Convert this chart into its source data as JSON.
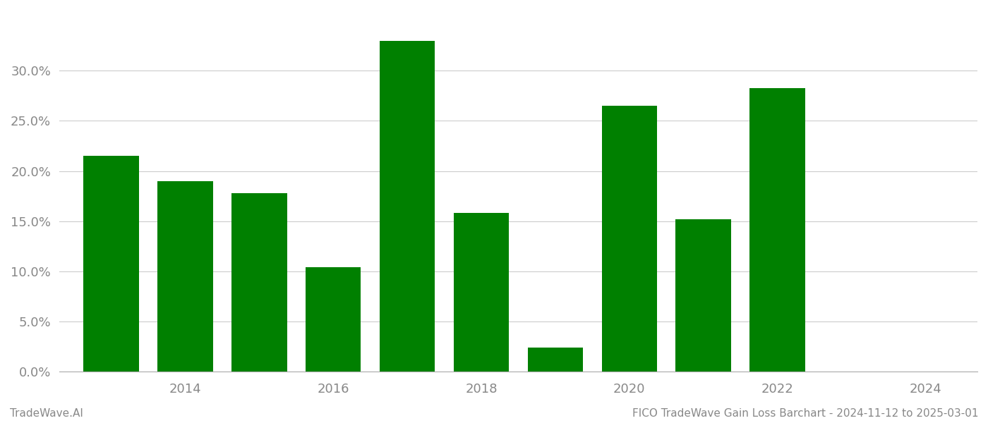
{
  "years": [
    2013,
    2014,
    2015,
    2016,
    2017,
    2018,
    2019,
    2020,
    2021,
    2022,
    2023
  ],
  "values": [
    0.215,
    0.19,
    0.178,
    0.104,
    0.33,
    0.158,
    0.024,
    0.265,
    0.152,
    0.283,
    0.0
  ],
  "bar_color": "#008000",
  "background_color": "#ffffff",
  "grid_color": "#cccccc",
  "xtick_positions": [
    2014,
    2016,
    2018,
    2020,
    2022,
    2024
  ],
  "ylim": [
    0,
    0.36
  ],
  "xlim": [
    2012.3,
    2024.7
  ],
  "ylabel_color": "#888888",
  "xlabel_color": "#888888",
  "footer_left": "TradeWave.AI",
  "footer_right": "FICO TradeWave Gain Loss Barchart - 2024-11-12 to 2025-03-01",
  "footer_color": "#888888",
  "tick_fontsize": 13,
  "footer_fontsize": 11,
  "bar_width": 0.75
}
